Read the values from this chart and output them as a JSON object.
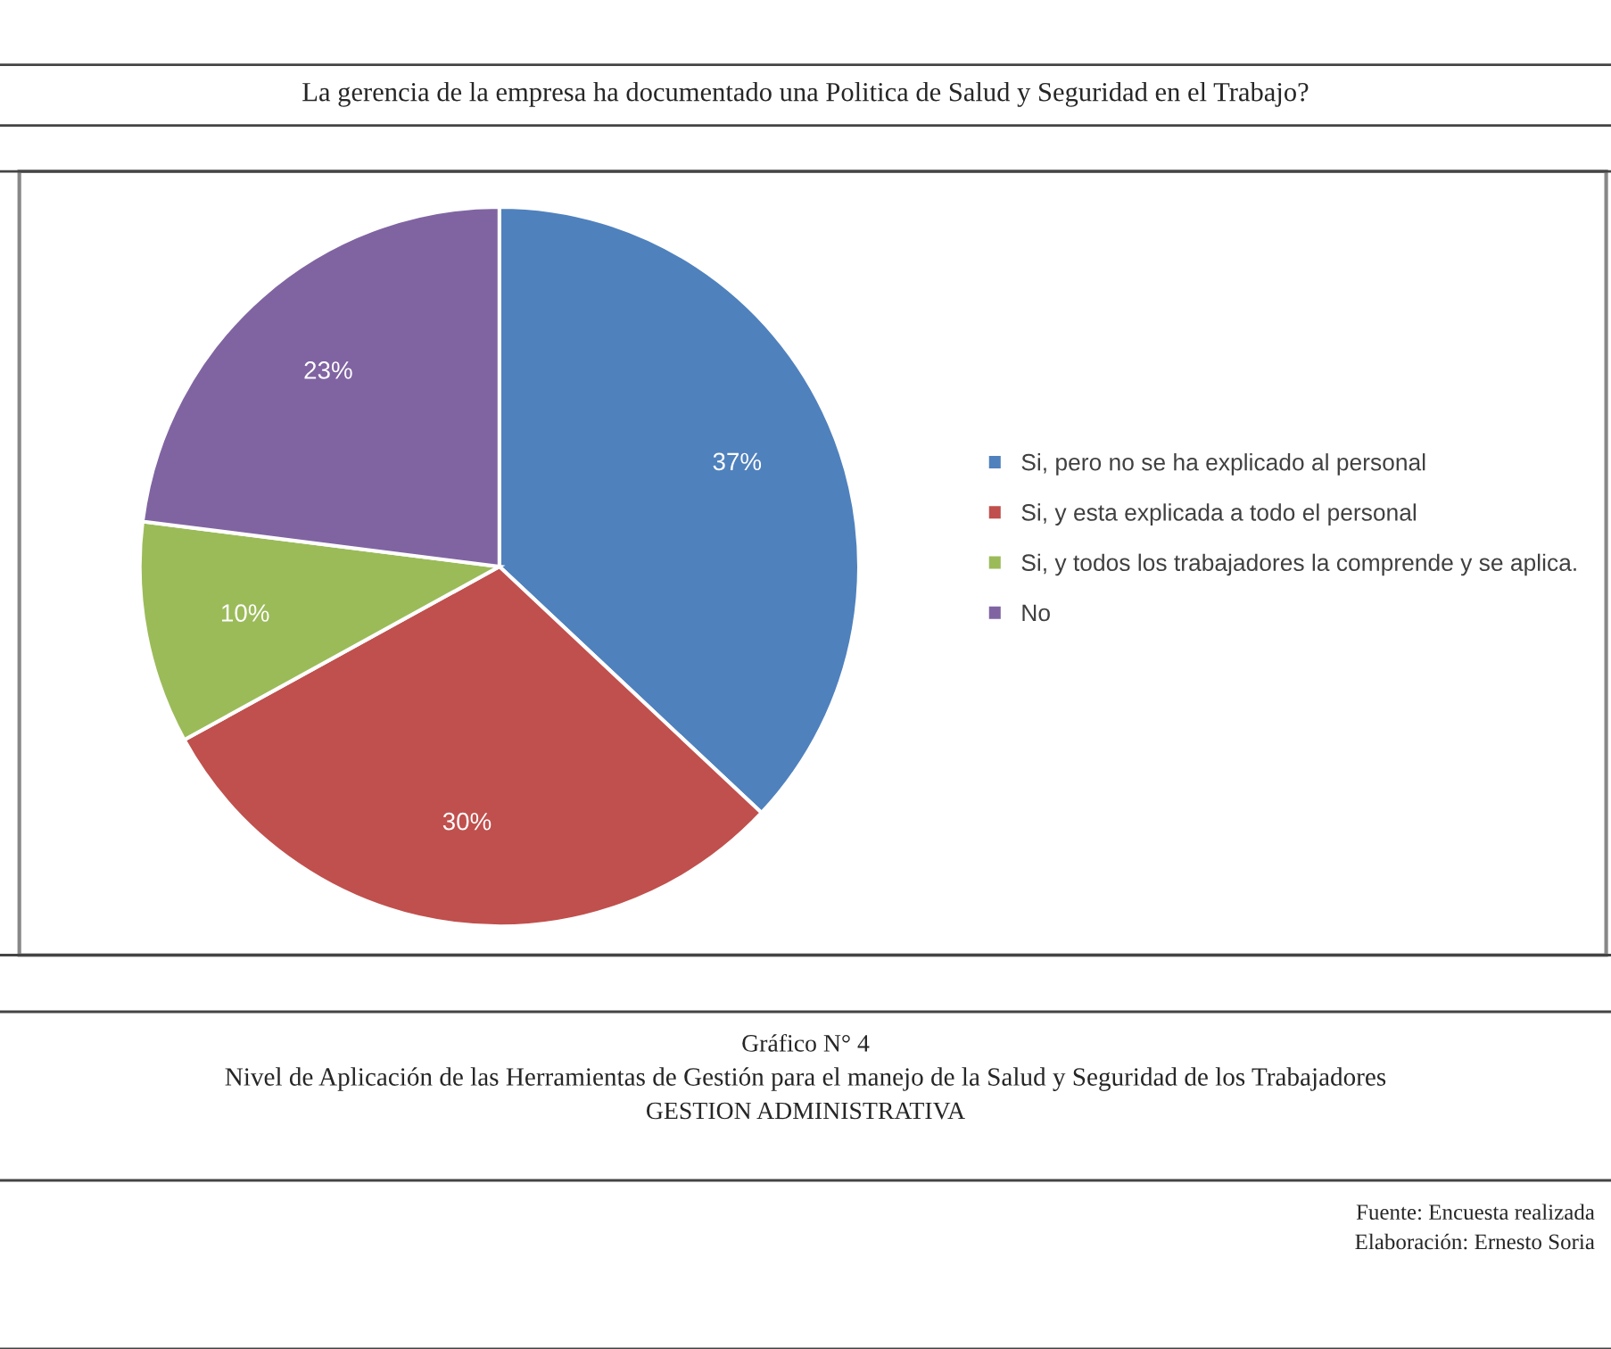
{
  "chart_data": {
    "type": "pie",
    "title": "La gerencia de la empresa ha documentado una Politica de Salud y Seguridad en el Trabajo?",
    "categories": [
      "Si, pero no se ha explicado al personal",
      "Si, y esta explicada a todo el personal",
      "Si, y todos los trabajadores la comprende y se aplica.",
      "No"
    ],
    "values": [
      37,
      30,
      10,
      23
    ],
    "colors": [
      "#4f81bd",
      "#c0504d",
      "#9bbb59",
      "#8064a2"
    ],
    "value_labels": [
      "37%",
      "30%",
      "10%",
      "23%"
    ],
    "legend": "right",
    "annotations": [
      "Gráfico N° 4",
      "Nivel de Aplicación de las Herramientas de Gestión para el manejo de la Salud y Seguridad de los Trabajadores",
      "GESTION ADMINISTRATIVA",
      "Fuente: Encuesta realizada",
      "Elaboración: Ernesto Soria"
    ]
  }
}
